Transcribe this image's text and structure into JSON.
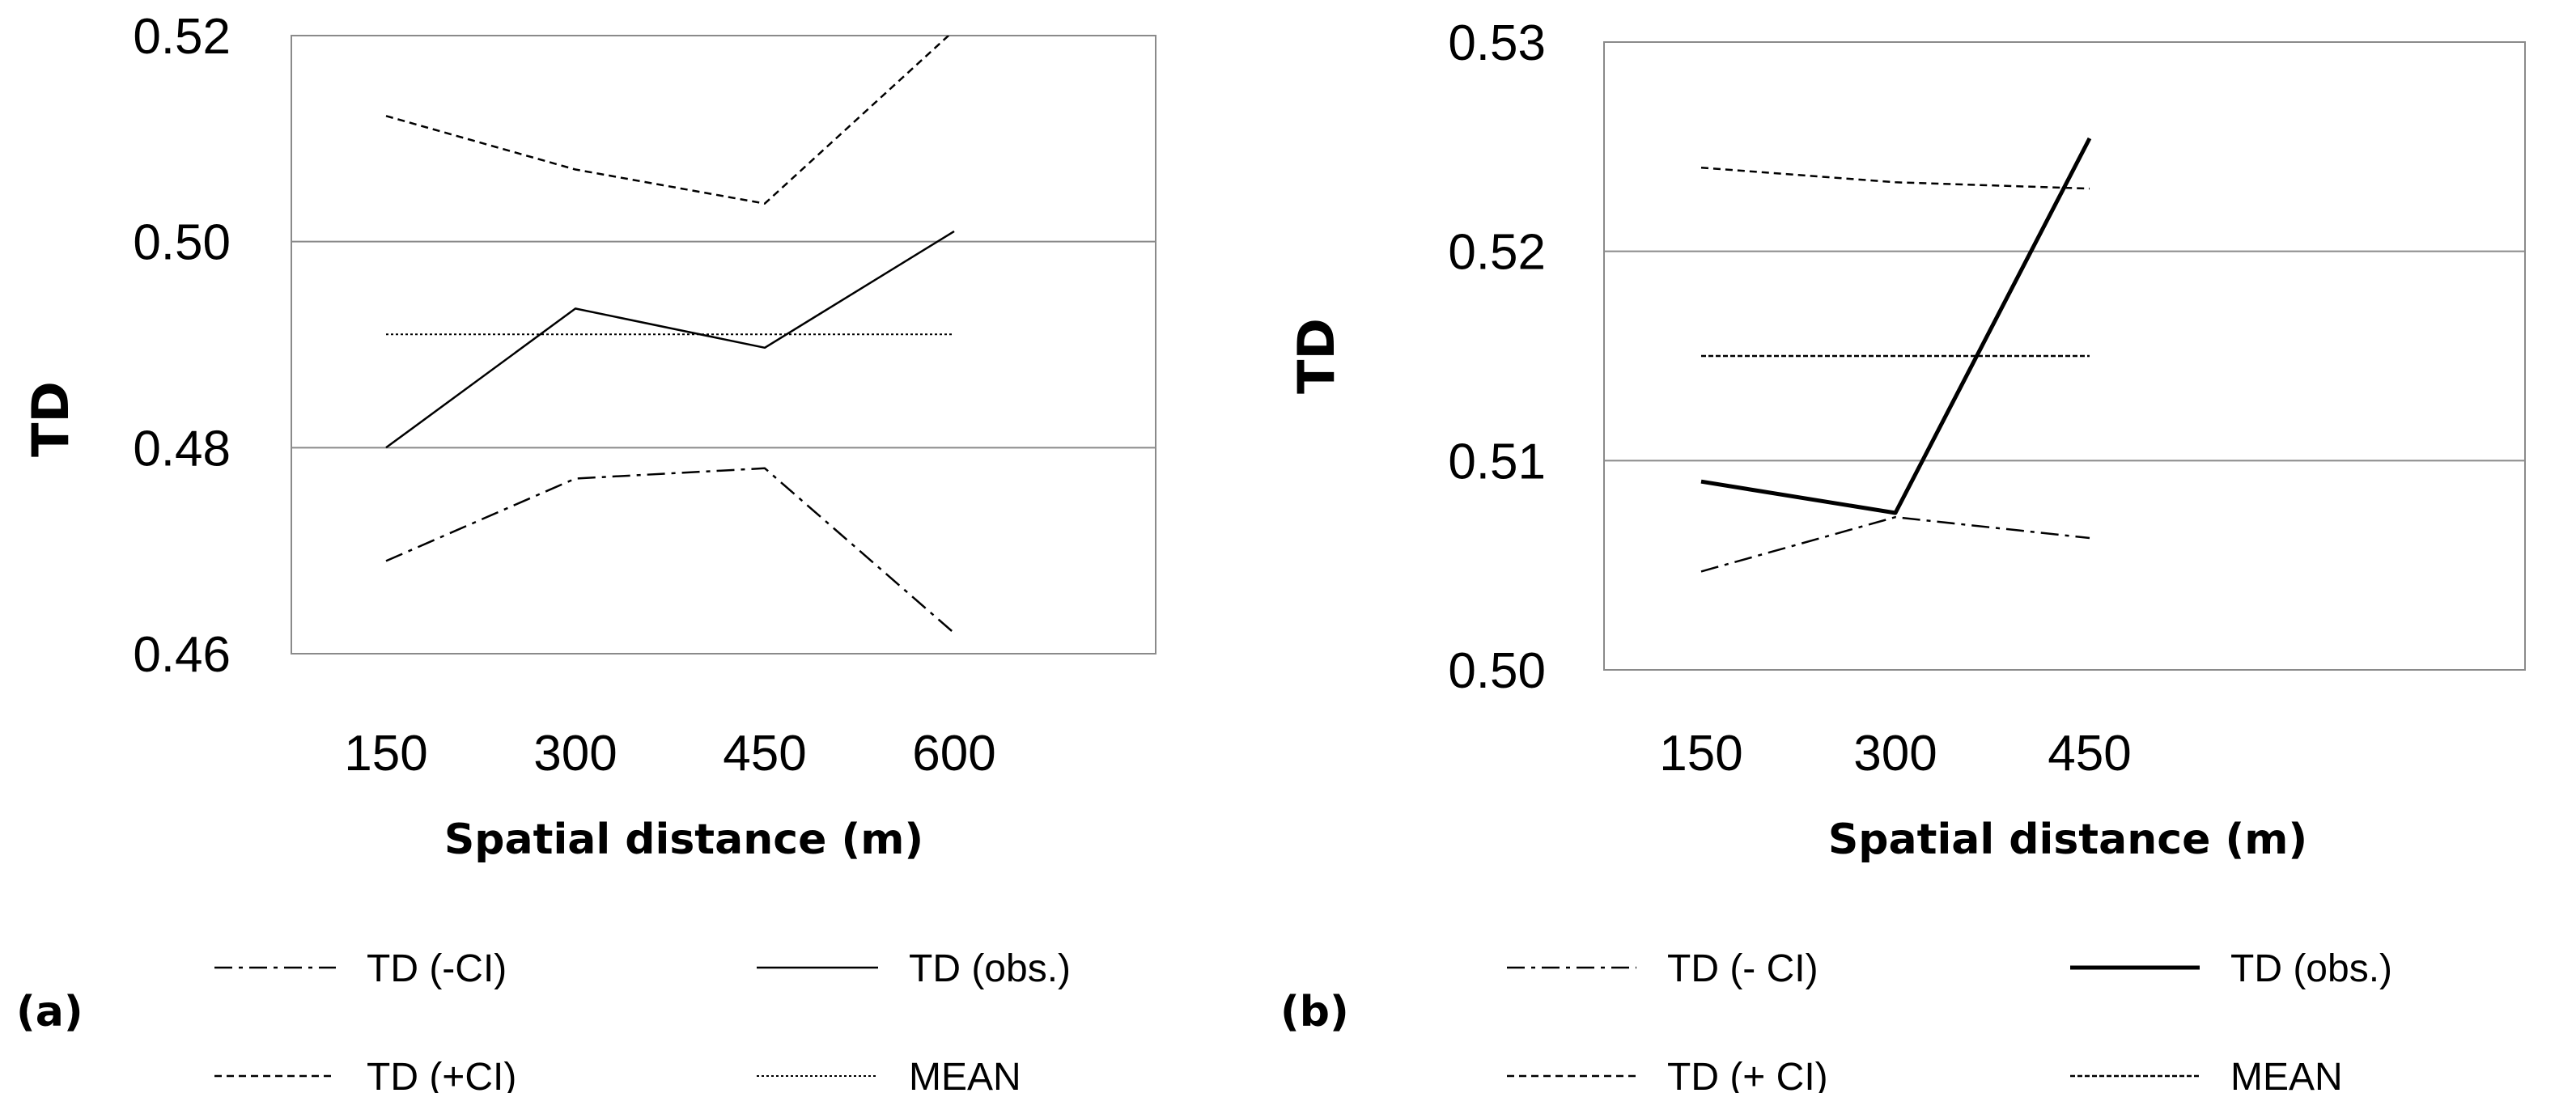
{
  "chart_data": [
    {
      "type": "line",
      "panel_label": "(a)",
      "xlabel": "Spatial distance (m)",
      "ylabel": "TD",
      "categories": [
        "150",
        "300",
        "450",
        "600"
      ],
      "ylim": [
        0.46,
        0.52
      ],
      "yticks": [
        "0.46",
        "0.48",
        "0.50",
        "0.52"
      ],
      "grid": true,
      "series": [
        {
          "name": "TD (-CI)",
          "style": "dashdot",
          "values": [
            0.469,
            0.477,
            0.478,
            0.462
          ]
        },
        {
          "name": "TD (obs.)",
          "style": "solid",
          "values": [
            0.48,
            0.4935,
            0.4897,
            0.501
          ]
        },
        {
          "name": "TD (+CI)",
          "style": "dashed",
          "values": [
            0.5122,
            0.507,
            0.5037,
            0.5205
          ]
        },
        {
          "name": "MEAN",
          "style": "dotted",
          "values": [
            0.491,
            0.491,
            0.491,
            0.491
          ]
        }
      ]
    },
    {
      "type": "line",
      "panel_label": "(b)",
      "xlabel": "Spatial distance (m)",
      "ylabel": "TD",
      "categories": [
        "150",
        "300",
        "450"
      ],
      "ylim": [
        0.5,
        0.53
      ],
      "yticks": [
        "0.50",
        "0.51",
        "0.52",
        "0.53"
      ],
      "grid": true,
      "series": [
        {
          "name": "TD (- CI)",
          "style": "dashdot",
          "values": [
            0.5047,
            0.5073,
            0.5063
          ]
        },
        {
          "name": "TD (obs.)",
          "style": "solid-bold",
          "values": [
            0.509,
            0.5075,
            0.5254
          ]
        },
        {
          "name": "TD (+ CI)",
          "style": "dashed",
          "values": [
            0.524,
            0.5233,
            0.523
          ]
        },
        {
          "name": "MEAN",
          "style": "dashed-fine",
          "values": [
            0.515,
            0.515,
            0.515
          ]
        }
      ]
    }
  ]
}
